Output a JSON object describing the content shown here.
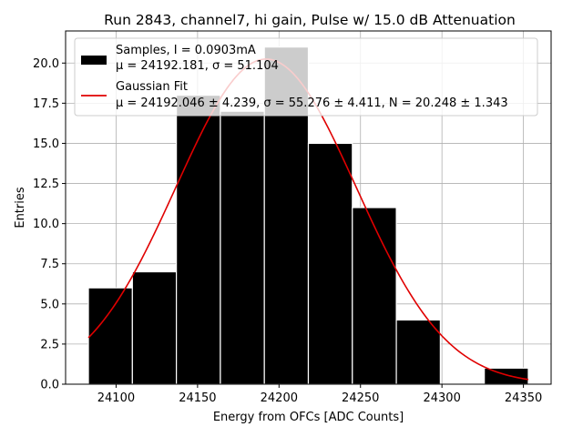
{
  "chart_data": {
    "type": "bar",
    "title": "Run 2843, channel7, hi gain, Pulse w/ 15.0 dB Attenuation",
    "xlabel": "Energy from OFCs [ADC Counts]",
    "ylabel": "Entries",
    "xlim": [
      24069,
      24367
    ],
    "ylim": [
      0,
      22
    ],
    "xticks": [
      24100,
      24150,
      24200,
      24250,
      24300,
      24350
    ],
    "xtick_labels": [
      "24100",
      "24150",
      "24200",
      "24250",
      "24300",
      "24350"
    ],
    "yticks": [
      0,
      2.5,
      5,
      7.5,
      10,
      12.5,
      15,
      17.5,
      20
    ],
    "ytick_labels": [
      "0.0",
      "2.5",
      "5.0",
      "7.5",
      "10.0",
      "12.5",
      "15.0",
      "17.5",
      "20.0"
    ],
    "grid": true,
    "legend_position": "top-right",
    "bins": [
      {
        "x0": 24083,
        "x1": 24110,
        "count": 6
      },
      {
        "x0": 24110,
        "x1": 24137,
        "count": 7
      },
      {
        "x0": 24137,
        "x1": 24164,
        "count": 18
      },
      {
        "x0": 24164,
        "x1": 24191,
        "count": 17
      },
      {
        "x0": 24191,
        "x1": 24218,
        "count": 21
      },
      {
        "x0": 24218,
        "x1": 24245,
        "count": 15
      },
      {
        "x0": 24245,
        "x1": 24272,
        "count": 11
      },
      {
        "x0": 24272,
        "x1": 24299,
        "count": 4
      },
      {
        "x0": 24299,
        "x1": 24326,
        "count": 0
      },
      {
        "x0": 24326,
        "x1": 24353,
        "count": 1
      }
    ],
    "fit": {
      "mu": 24192.046,
      "sigma": 55.276,
      "N": 20.248,
      "x_start": 24083,
      "x_end": 24353
    },
    "colors": {
      "bars": "#000000",
      "bar_edge": "#ffffff",
      "fit": "#e00000",
      "grid": "#b0b0b0"
    },
    "series": [
      {
        "name": "Samples, I = 0.0903mA",
        "stats": "μ = 24192.181, σ = 51.104"
      },
      {
        "name": "Gaussian Fit",
        "stats": "μ = 24192.046 ± 4.239, σ = 55.276 ± 4.411, N = 20.248 ± 1.343"
      }
    ]
  }
}
